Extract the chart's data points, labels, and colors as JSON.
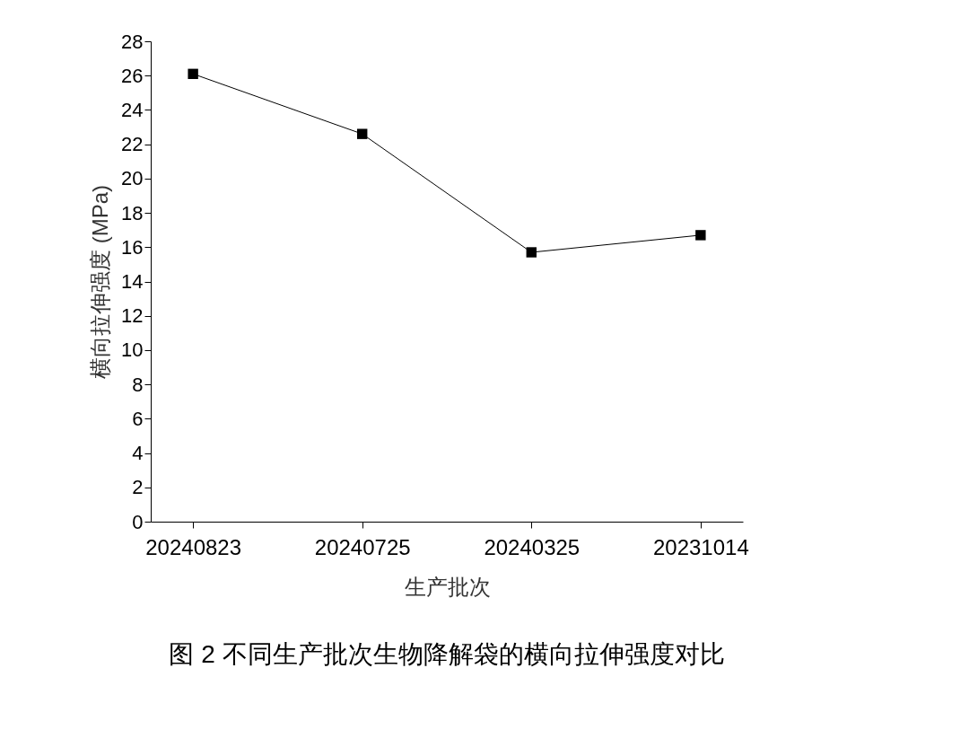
{
  "chart_data": {
    "type": "line",
    "title": "图 2  不同生产批次生物降解袋的横向拉伸强度对比",
    "xlabel": "生产批次",
    "ylabel": "横向拉伸强度 (MPa)",
    "categories": [
      "20240823",
      "20240725",
      "20240325",
      "20231014"
    ],
    "series": [
      {
        "color": "#000000",
        "values": [
          26.1,
          22.6,
          15.7,
          16.7
        ]
      }
    ],
    "ylim": [
      0,
      28
    ],
    "yticks": [
      0,
      2,
      4,
      6,
      8,
      10,
      12,
      14,
      16,
      18,
      20,
      22,
      24,
      26,
      28
    ],
    "marker": "square",
    "line_style": "solid",
    "grid": false
  }
}
